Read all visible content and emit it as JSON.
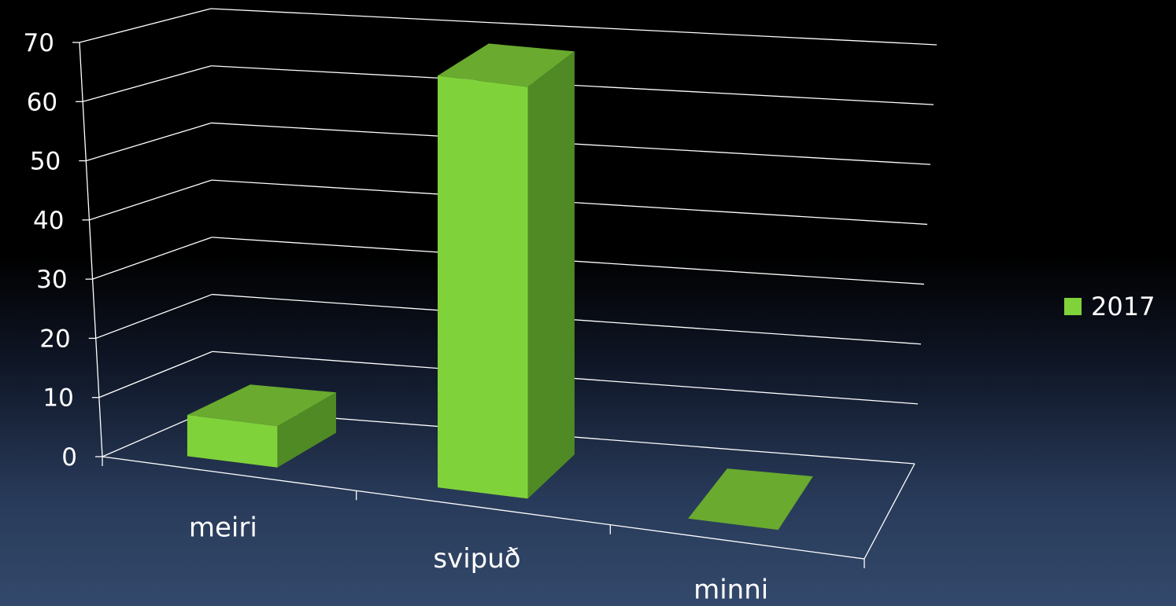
{
  "chart_data": {
    "type": "bar",
    "categories": [
      "meiri",
      "svipuð",
      "minni"
    ],
    "series": [
      {
        "name": "2017",
        "values": [
          7,
          70,
          0
        ],
        "color": "#80d23a"
      }
    ],
    "ylim": [
      0,
      70
    ],
    "yticks": [
      0,
      10,
      20,
      30,
      40,
      50,
      60,
      70
    ],
    "grid": true,
    "legend": "right",
    "style": "3d-column"
  }
}
